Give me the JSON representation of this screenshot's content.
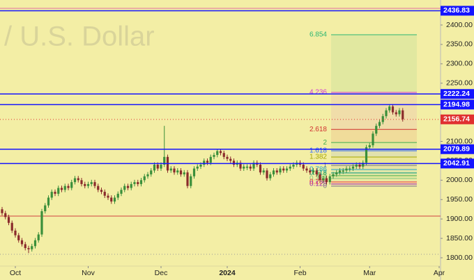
{
  "chart_data": {
    "type": "candlestick",
    "watermark": "/ U.S. Dollar",
    "background": "#f3eea5",
    "up_color": "#3a8f3a",
    "down_color": "#8a2b2b",
    "x": [
      0,
      1,
      2,
      3,
      4,
      5,
      6,
      7,
      8,
      9,
      10,
      11,
      12,
      13,
      14,
      15,
      16,
      17,
      18,
      19,
      20,
      21,
      22,
      23,
      24,
      25,
      26,
      27,
      28,
      29,
      30,
      31,
      32,
      33,
      34,
      35,
      36,
      37,
      38,
      39,
      40,
      41,
      42,
      43,
      44,
      45,
      46,
      47,
      48,
      49,
      50,
      51,
      52,
      53,
      54,
      55,
      56,
      57,
      58,
      59,
      60,
      61,
      62,
      63,
      64,
      65,
      66,
      67,
      68,
      69,
      70,
      71,
      72,
      73,
      74,
      75,
      76,
      77,
      78,
      79,
      80,
      81,
      82,
      83,
      84,
      85,
      86,
      87,
      88,
      89,
      90,
      91,
      92,
      93,
      94,
      95,
      96,
      97,
      98,
      99,
      100,
      101,
      102,
      103,
      104,
      105,
      106,
      107,
      108,
      109,
      110,
      111,
      112,
      113,
      114,
      115,
      116,
      117,
      118,
      119,
      120,
      121
    ],
    "open": [
      1925,
      1915,
      1905,
      1890,
      1870,
      1858,
      1845,
      1835,
      1825,
      1822,
      1830,
      1845,
      1860,
      1920,
      1935,
      1955,
      1970,
      1965,
      1980,
      1975,
      1985,
      1980,
      1995,
      2005,
      2000,
      1990,
      1985,
      1990,
      1995,
      1985,
      1975,
      1970,
      1960,
      1955,
      1945,
      1955,
      1965,
      1975,
      1985,
      1980,
      1990,
      1995,
      1990,
      2000,
      2010,
      2015,
      2025,
      2040,
      2030,
      2040,
      2060,
      2025,
      2030,
      2020,
      2025,
      2015,
      2020,
      1985,
      2010,
      2030,
      2035,
      2040,
      2050,
      2045,
      2060,
      2065,
      2075,
      2070,
      2060,
      2055,
      2050,
      2040,
      2045,
      2030,
      2032,
      2035,
      2030,
      2045,
      2040,
      2020,
      2025,
      2005,
      2015,
      2025,
      2020,
      2030,
      2025,
      2030,
      2035,
      2040,
      2045,
      2040,
      2030,
      2025,
      2020,
      2025,
      2015,
      2000,
      2005,
      1995,
      2010,
      2015,
      2020,
      2022,
      2025,
      2028,
      2030,
      2035,
      2040,
      2035,
      2045,
      2085,
      2090,
      2120,
      2140,
      2150,
      2165,
      2180,
      2190,
      2175,
      2170,
      2180
    ],
    "high": [
      1931,
      1921,
      1911,
      1896,
      1876,
      1864,
      1851,
      1841,
      1831,
      1836,
      1851,
      1866,
      1926,
      1941,
      1961,
      1976,
      1976,
      1986,
      1986,
      1991,
      1991,
      2001,
      2011,
      2011,
      2006,
      1996,
      1996,
      2001,
      2001,
      1991,
      1981,
      1976,
      1966,
      1961,
      1961,
      1971,
      1981,
      1991,
      1991,
      1996,
      2001,
      2001,
      2006,
      2016,
      2021,
      2031,
      2046,
      2046,
      2046,
      2140,
      2066,
      2036,
      2036,
      2031,
      2031,
      2026,
      2026,
      2016,
      2036,
      2041,
      2046,
      2056,
      2056,
      2066,
      2071,
      2081,
      2081,
      2076,
      2066,
      2061,
      2056,
      2051,
      2051,
      2041,
      2041,
      2041,
      2051,
      2051,
      2046,
      2031,
      2031,
      2021,
      2031,
      2031,
      2036,
      2036,
      2036,
      2041,
      2046,
      2051,
      2051,
      2046,
      2036,
      2031,
      2031,
      2031,
      2021,
      2011,
      2011,
      2016,
      2021,
      2026,
      2031,
      2031,
      2036,
      2036,
      2041,
      2046,
      2046,
      2051,
      2091,
      2096,
      2126,
      2146,
      2156,
      2171,
      2186,
      2196,
      2196,
      2181,
      2186,
      2186
    ],
    "low": [
      1909,
      1899,
      1884,
      1864,
      1852,
      1839,
      1829,
      1819,
      1812,
      1816,
      1824,
      1839,
      1854,
      1914,
      1929,
      1949,
      1959,
      1959,
      1969,
      1969,
      1974,
      1974,
      1989,
      1994,
      1984,
      1979,
      1979,
      1984,
      1979,
      1969,
      1964,
      1954,
      1949,
      1939,
      1939,
      1949,
      1959,
      1969,
      1974,
      1974,
      1984,
      1984,
      1984,
      1994,
      2004,
      2009,
      2019,
      2024,
      2024,
      2034,
      2019,
      2019,
      2014,
      2014,
      2009,
      2009,
      1979,
      1979,
      2004,
      2024,
      2029,
      2034,
      2039,
      2039,
      2054,
      2059,
      2064,
      2054,
      2049,
      2044,
      2034,
      2034,
      2024,
      2024,
      2026,
      2024,
      2024,
      2034,
      2014,
      2014,
      1999,
      1999,
      2009,
      2014,
      2014,
      2019,
      2019,
      2024,
      2029,
      2034,
      2034,
      2024,
      2019,
      2014,
      2014,
      2009,
      1994,
      1994,
      1989,
      1989,
      2004,
      2009,
      2014,
      2016,
      2019,
      2022,
      2024,
      2029,
      2029,
      2029,
      2039,
      2079,
      2084,
      2114,
      2134,
      2144,
      2159,
      2174,
      2169,
      2164,
      2164,
      2151
    ],
    "close": [
      1915,
      1905,
      1890,
      1870,
      1858,
      1845,
      1835,
      1825,
      1822,
      1830,
      1845,
      1860,
      1920,
      1935,
      1955,
      1970,
      1965,
      1980,
      1975,
      1985,
      1980,
      1995,
      2005,
      2000,
      1990,
      1985,
      1990,
      1995,
      1985,
      1975,
      1970,
      1960,
      1955,
      1945,
      1955,
      1965,
      1975,
      1985,
      1980,
      1990,
      1995,
      1990,
      2000,
      2010,
      2015,
      2025,
      2040,
      2030,
      2040,
      2060,
      2025,
      2030,
      2020,
      2025,
      2015,
      2020,
      1985,
      2010,
      2030,
      2035,
      2040,
      2050,
      2045,
      2060,
      2065,
      2075,
      2070,
      2060,
      2055,
      2050,
      2040,
      2045,
      2030,
      2035,
      2035,
      2030,
      2045,
      2040,
      2020,
      2025,
      2005,
      2015,
      2025,
      2020,
      2030,
      2025,
      2030,
      2035,
      2040,
      2045,
      2040,
      2030,
      2025,
      2020,
      2025,
      2015,
      2000,
      2005,
      1995,
      2010,
      2015,
      2020,
      2025,
      2025,
      2030,
      2030,
      2035,
      2040,
      2035,
      2045,
      2085,
      2090,
      2120,
      2140,
      2150,
      2165,
      2180,
      2190,
      2175,
      2170,
      2180,
      2157
    ],
    "xlim": [
      -0.63,
      132.42
    ],
    "xticks": [
      {
        "value": 4,
        "label": "Oct"
      },
      {
        "value": 26,
        "label": "Nov"
      },
      {
        "value": 48,
        "label": "Dec"
      },
      {
        "value": 68,
        "label": "2024"
      },
      {
        "value": 90,
        "label": "Feb"
      },
      {
        "value": 111,
        "label": "Mar"
      },
      {
        "value": 132,
        "label": "Apr"
      }
    ],
    "ylim": [
      1778.5,
      2464.5
    ],
    "yticks": [
      {
        "value": 1800,
        "label": "1800.00"
      },
      {
        "value": 1850,
        "label": "1850.00"
      },
      {
        "value": 1900,
        "label": "1900.00"
      },
      {
        "value": 1950,
        "label": "1950.00"
      },
      {
        "value": 2000,
        "label": "2000.00"
      },
      {
        "value": 2050,
        "label": "2050.00"
      },
      {
        "value": 2100,
        "label": "2100.00"
      },
      {
        "value": 2150,
        "label": "2150.00"
      },
      {
        "value": 2200,
        "label": "2200.00"
      },
      {
        "value": 2250,
        "label": "2250.00"
      },
      {
        "value": 2300,
        "label": "2300.00"
      },
      {
        "value": 2350,
        "label": "2350.00"
      },
      {
        "value": 2400,
        "label": "2400.00"
      }
    ],
    "levels": [
      {
        "value": 2436.83,
        "color": "#1414ff"
      },
      {
        "value": 2222.24,
        "color": "#1414ff"
      },
      {
        "value": 2194.98,
        "color": "#1414ff"
      },
      {
        "value": 2079.89,
        "color": "#1414ff"
      },
      {
        "value": 2042.91,
        "color": "#1414ff"
      }
    ],
    "price_line": {
      "value": 2156.74,
      "color": "#e03030"
    },
    "lines": [
      {
        "value": 2443,
        "color": "#e070a0",
        "style": "solid"
      },
      {
        "value": 1907.5,
        "color": "#d04040",
        "style": "solid"
      },
      {
        "value": 1809,
        "color": "#999999",
        "style": "dotted"
      }
    ],
    "fib": {
      "x": [
        99.37,
        125.26
      ],
      "levels": [
        6.854,
        4.236,
        2.618,
        2,
        1.618,
        1.382,
        1,
        0.786,
        0.618,
        0.5,
        0.382,
        0.236,
        0.128,
        0
      ],
      "prices": [
        2375,
        2226.3,
        2131,
        2097,
        2075.8,
        2059.6,
        2038,
        2027.5,
        2018.7,
        2011.5,
        2004.4,
        1995.4,
        1990,
        1984.5
      ],
      "colors": [
        "#2bb673",
        "#d43ad4",
        "#d03030",
        "#3fae4f",
        "#2962ff",
        "#a6a600",
        "#787b86",
        "#26a6c6",
        "#089981",
        "#4caf50",
        "#81c784",
        "#f23645",
        "#9c27b0",
        "#787b86"
      ]
    }
  }
}
